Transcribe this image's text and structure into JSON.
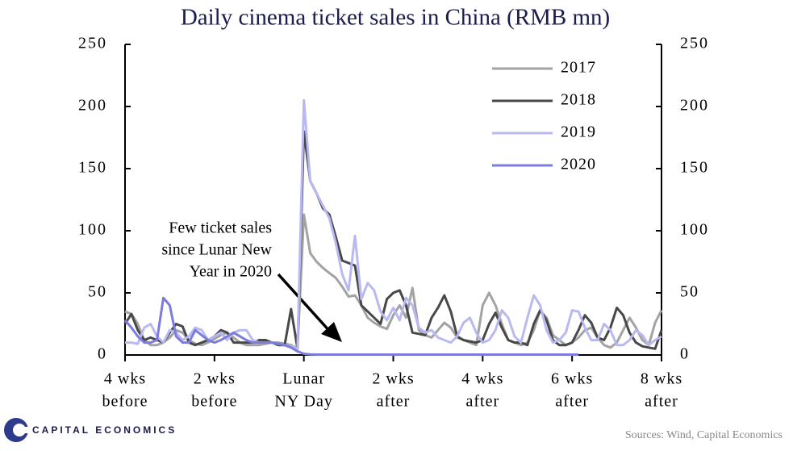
{
  "chart_data": {
    "type": "line",
    "title": "Daily cinema ticket sales in China (RMB mn)",
    "x": [
      -28,
      -27,
      -26,
      -25,
      -24,
      -23,
      -22,
      -21,
      -20,
      -19,
      -18,
      -17,
      -16,
      -15,
      -14,
      -13,
      -12,
      -11,
      -10,
      -9,
      -8,
      -7,
      -6,
      -5,
      -4,
      -3,
      -2,
      -1,
      0,
      1,
      2,
      3,
      4,
      5,
      6,
      7,
      8,
      9,
      10,
      11,
      12,
      13,
      14,
      15,
      16,
      17,
      18,
      19,
      20,
      21,
      22,
      23,
      24,
      25,
      26,
      27,
      28,
      29,
      30,
      31,
      32,
      33,
      34,
      35,
      36,
      37,
      38,
      39,
      40,
      41,
      42,
      43,
      44,
      45,
      46,
      47,
      48,
      49,
      50,
      51,
      52,
      53,
      54,
      55,
      56
    ],
    "xlim": [
      -28,
      56
    ],
    "xticks": [
      {
        "value": -28,
        "label": [
          "4 wks",
          "before"
        ]
      },
      {
        "value": -14,
        "label": [
          "2 wks",
          "before"
        ]
      },
      {
        "value": 0,
        "label": [
          "Lunar",
          "NY Day"
        ]
      },
      {
        "value": 14,
        "label": [
          "2 wks",
          "after"
        ]
      },
      {
        "value": 28,
        "label": [
          "4 wks",
          "after"
        ]
      },
      {
        "value": 42,
        "label": [
          "6 wks",
          "after"
        ]
      },
      {
        "value": 56,
        "label": [
          "8 wks",
          "after"
        ]
      }
    ],
    "ylim": [
      0,
      250
    ],
    "yticks": [
      0,
      50,
      100,
      150,
      200,
      250
    ],
    "y2lim": [
      0,
      250
    ],
    "y2ticks": [
      0,
      50,
      100,
      150,
      200,
      250
    ],
    "legend": "top-right",
    "series": [
      {
        "name": "2017",
        "color": "#a3a3a3",
        "values": [
          35,
          33,
          25,
          12,
          8,
          8,
          10,
          14,
          20,
          18,
          12,
          9,
          8,
          10,
          13,
          16,
          18,
          14,
          10,
          8,
          8,
          8,
          9,
          10,
          10,
          9,
          8,
          5,
          113,
          82,
          75,
          70,
          66,
          62,
          55,
          47,
          48,
          40,
          30,
          26,
          23,
          21,
          32,
          40,
          30,
          54,
          20,
          16,
          14,
          20,
          26,
          22,
          14,
          12,
          10,
          8,
          40,
          50,
          40,
          25,
          12,
          10,
          8,
          10,
          20,
          36,
          30,
          16,
          12,
          8,
          10,
          14,
          20,
          22,
          14,
          8,
          6,
          10,
          20,
          30,
          22,
          12,
          8,
          26,
          36
        ]
      },
      {
        "name": "2018",
        "color": "#484848",
        "values": [
          25,
          33,
          20,
          12,
          14,
          12,
          10,
          18,
          25,
          23,
          10,
          8,
          10,
          12,
          15,
          20,
          18,
          10,
          10,
          10,
          10,
          12,
          12,
          10,
          8,
          8,
          37,
          5,
          180,
          140,
          130,
          118,
          113,
          95,
          76,
          74,
          72,
          40,
          35,
          30,
          25,
          45,
          50,
          52,
          40,
          18,
          17,
          16,
          30,
          38,
          48,
          35,
          15,
          12,
          11,
          10,
          12,
          25,
          34,
          22,
          12,
          10,
          10,
          8,
          25,
          36,
          28,
          12,
          8,
          8,
          10,
          20,
          32,
          26,
          14,
          12,
          22,
          38,
          32,
          18,
          10,
          7,
          6,
          5,
          20
        ]
      },
      {
        "name": "2019",
        "color": "#b9b9f2",
        "values": [
          10,
          10,
          9,
          22,
          25,
          15,
          10,
          20,
          18,
          12,
          15,
          22,
          20,
          12,
          15,
          18,
          12,
          18,
          20,
          20,
          12,
          10,
          10,
          10,
          9,
          8,
          7,
          5,
          205,
          140,
          130,
          120,
          110,
          90,
          65,
          52,
          96,
          45,
          58,
          52,
          35,
          28,
          38,
          28,
          46,
          40,
          22,
          18,
          20,
          14,
          12,
          10,
          15,
          26,
          30,
          18,
          10,
          12,
          20,
          36,
          30,
          15,
          10,
          30,
          48,
          40,
          20,
          10,
          12,
          18,
          36,
          35,
          22,
          12,
          12,
          25,
          20,
          8,
          8,
          12,
          20,
          16,
          8,
          12,
          15
        ]
      },
      {
        "name": "2020",
        "color": "#7b7be0",
        "values": [
          28,
          22,
          15,
          10,
          10,
          12,
          46,
          40,
          15,
          10,
          10,
          20,
          16,
          12,
          10,
          12,
          15,
          18,
          15,
          12,
          10,
          10,
          10,
          10,
          9,
          8,
          6,
          3,
          1,
          0.5,
          0.3,
          0.3,
          0.3,
          0.3,
          0.3,
          0.3,
          0.3,
          0.3,
          0.3,
          0.3,
          0.3,
          0.3,
          0.3,
          0.3,
          0.3,
          0.3,
          0.3,
          0.3,
          0.3,
          0.3,
          0.3,
          0.3,
          0.3,
          0.3,
          0.3,
          0.3,
          0.3,
          0.3,
          0.3,
          0.3,
          0.3,
          0.3,
          0.3,
          0.3,
          0.3,
          0.3,
          0.3,
          0.3,
          0.3,
          0.3,
          0.3,
          0.3,
          null,
          null,
          null,
          null,
          null,
          null,
          null,
          null,
          null,
          null,
          null,
          null,
          null
        ]
      }
    ],
    "annotation": [
      "Few ticket sales",
      "since Lunar New",
      "Year in 2020"
    ]
  },
  "footer": {
    "logo": "CAPITAL ECONOMICS",
    "source": "Sources: Wind, Capital Economics"
  }
}
